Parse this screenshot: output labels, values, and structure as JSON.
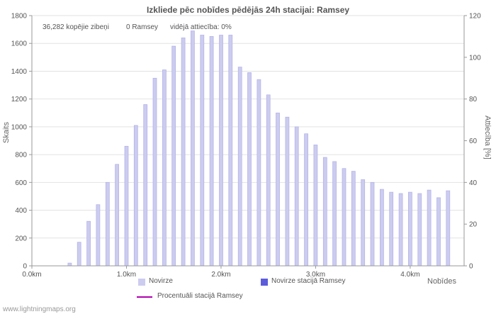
{
  "title": "Izkliede pēc nobīdes pēdējās 24h stacijai: Ramsey",
  "annotations": {
    "total_strikes": "36,282 kopējie zibeņi",
    "station_strikes": "0 Ramsey",
    "average_ratio": "vidējā attiecība: 0%"
  },
  "watermark": "www.lightningmaps.org",
  "colors": {
    "grid": "#e2e2e2",
    "axis": "#999999",
    "tick_text": "#555555",
    "title_text": "#555555",
    "annotation_text": "#555555",
    "watermark_text": "#999999",
    "background": "#ffffff"
  },
  "chart_data": {
    "type": "bar",
    "title": "Izkliede pēc nobīdes pēdējās 24h stacijai: Ramsey",
    "xlabel": "Nobīdes",
    "ylabel_left": "Skaits",
    "ylabel_right": "Attiecība [%]",
    "x_unit": "km",
    "x_range": [
      0,
      4.57
    ],
    "ylim_left": [
      0,
      1800
    ],
    "ylim_right": [
      0,
      120
    ],
    "y_ticks_left": [
      0,
      200,
      400,
      600,
      800,
      1000,
      1200,
      1400,
      1600,
      1800
    ],
    "y_ticks_right": [
      0,
      20,
      40,
      60,
      80,
      100,
      120
    ],
    "x_ticks": [
      "0.0km",
      "1.0km",
      "2.0km",
      "3.0km",
      "4.0km"
    ],
    "x_tick_positions": [
      0,
      1,
      2,
      3,
      4
    ],
    "grid": "horizontal",
    "legend_position": "bottom",
    "x": [
      0.4,
      0.5,
      0.6,
      0.7,
      0.8,
      0.9,
      1.0,
      1.1,
      1.2,
      1.3,
      1.4,
      1.5,
      1.6,
      1.7,
      1.8,
      1.9,
      2.0,
      2.1,
      2.2,
      2.3,
      2.4,
      2.5,
      2.6,
      2.7,
      2.8,
      2.9,
      3.0,
      3.1,
      3.2,
      3.3,
      3.4,
      3.5,
      3.6,
      3.7,
      3.8,
      3.9,
      4.0,
      4.1,
      4.2,
      4.3,
      4.4
    ],
    "series": [
      {
        "name": "Novirze",
        "type": "bar",
        "color": "#ccccf0",
        "edge": "#b2b2e6",
        "values": [
          20,
          170,
          320,
          440,
          600,
          730,
          860,
          1010,
          1160,
          1350,
          1410,
          1580,
          1640,
          1690,
          1660,
          1650,
          1660,
          1660,
          1430,
          1390,
          1340,
          1230,
          1100,
          1070,
          1000,
          950,
          870,
          780,
          750,
          700,
          680,
          620,
          600,
          550,
          530,
          520,
          530,
          520,
          545,
          490,
          540
        ]
      },
      {
        "name": "Novirze stacijā Ramsey",
        "type": "bar",
        "color": "#5c5cdc",
        "values": [
          0,
          0,
          0,
          0,
          0,
          0,
          0,
          0,
          0,
          0,
          0,
          0,
          0,
          0,
          0,
          0,
          0,
          0,
          0,
          0,
          0,
          0,
          0,
          0,
          0,
          0,
          0,
          0,
          0,
          0,
          0,
          0,
          0,
          0,
          0,
          0,
          0,
          0,
          0,
          0,
          0
        ]
      },
      {
        "name": "Procentuāli stacijā Ramsey",
        "type": "line",
        "axis": "right",
        "color": "#b000b0",
        "values": [
          0,
          0,
          0,
          0,
          0,
          0,
          0,
          0,
          0,
          0,
          0,
          0,
          0,
          0,
          0,
          0,
          0,
          0,
          0,
          0,
          0,
          0,
          0,
          0,
          0,
          0,
          0,
          0,
          0,
          0,
          0,
          0,
          0,
          0,
          0,
          0,
          0,
          0,
          0,
          0,
          0
        ]
      }
    ]
  }
}
